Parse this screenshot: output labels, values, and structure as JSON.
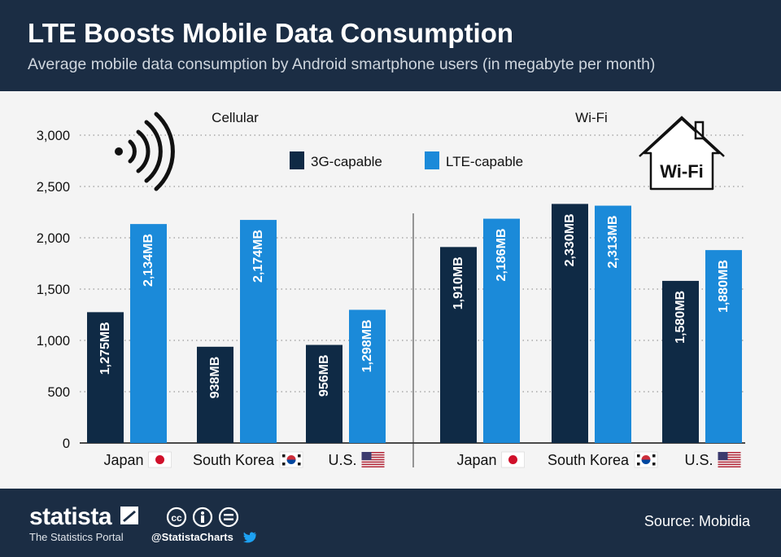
{
  "header": {
    "title": "LTE Boosts Mobile Data Consumption",
    "subtitle": "Average mobile data consumption by Android smartphone users (in megabyte per month)"
  },
  "colors": {
    "header_bg": "#1b2d44",
    "series_3g": "#0f2a45",
    "series_lte": "#1b8ad9",
    "bar_label": "#ffffff",
    "text": "#111111"
  },
  "chart_data": {
    "type": "bar",
    "title": "LTE Boosts Mobile Data Consumption",
    "ylabel": "megabyte per month",
    "ylim": [
      0,
      3000
    ],
    "yticks": [
      0,
      500,
      1000,
      1500,
      2000,
      2500,
      3000
    ],
    "ytick_labels": [
      "0",
      "500",
      "1,000",
      "1,500",
      "2,000",
      "2,500",
      "3,000"
    ],
    "legend": {
      "position": "top-center",
      "entries": [
        "3G-capable",
        "LTE-capable"
      ]
    },
    "panels": [
      {
        "name": "Cellular",
        "categories": [
          "Japan",
          "South Korea",
          "U.S."
        ],
        "series": [
          {
            "name": "3G-capable",
            "values": [
              1275,
              938,
              956
            ],
            "labels": [
              "1,275MB",
              "938MB",
              "956MB"
            ]
          },
          {
            "name": "LTE-capable",
            "values": [
              2134,
              2174,
              1298
            ],
            "labels": [
              "2,134MB",
              "2,174MB",
              "1,298MB"
            ]
          }
        ]
      },
      {
        "name": "Wi-Fi",
        "categories": [
          "Japan",
          "South Korea",
          "U.S."
        ],
        "series": [
          {
            "name": "3G-capable",
            "values": [
              1910,
              2330,
              1580
            ],
            "labels": [
              "1,910MB",
              "2,330MB",
              "1,580MB"
            ]
          },
          {
            "name": "LTE-capable",
            "values": [
              2186,
              2313,
              1880
            ],
            "labels": [
              "2,186MB",
              "2,313MB",
              "1,880MB"
            ]
          }
        ]
      }
    ],
    "wifi_icon_text": "Wi-Fi"
  },
  "footer": {
    "brand": "statista",
    "tagline": "The Statistics Portal",
    "handle": "@StatistaCharts",
    "source": "Source: Mobidia"
  }
}
